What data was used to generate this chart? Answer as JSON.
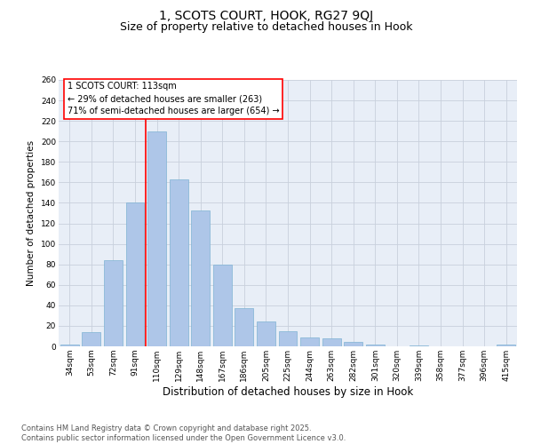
{
  "title_line1": "1, SCOTS COURT, HOOK, RG27 9QJ",
  "title_line2": "Size of property relative to detached houses in Hook",
  "xlabel": "Distribution of detached houses by size in Hook",
  "ylabel": "Number of detached properties",
  "categories": [
    "34sqm",
    "53sqm",
    "72sqm",
    "91sqm",
    "110sqm",
    "129sqm",
    "148sqm",
    "167sqm",
    "186sqm",
    "205sqm",
    "225sqm",
    "244sqm",
    "263sqm",
    "282sqm",
    "301sqm",
    "320sqm",
    "339sqm",
    "358sqm",
    "377sqm",
    "396sqm",
    "415sqm"
  ],
  "values": [
    2,
    14,
    84,
    140,
    210,
    163,
    133,
    80,
    37,
    24,
    15,
    9,
    8,
    4,
    2,
    0,
    1,
    0,
    0,
    0,
    2
  ],
  "bar_color": "#aec6e8",
  "bar_edge_color": "#7fb3d3",
  "property_bin_index": 4,
  "annotation_line1": "1 SCOTS COURT: 113sqm",
  "annotation_line2": "← 29% of detached houses are smaller (263)",
  "annotation_line3": "71% of semi-detached houses are larger (654) →",
  "annotation_box_facecolor": "white",
  "annotation_box_edgecolor": "red",
  "vline_color": "red",
  "ylim": [
    0,
    260
  ],
  "yticks": [
    0,
    20,
    40,
    60,
    80,
    100,
    120,
    140,
    160,
    180,
    200,
    220,
    240,
    260
  ],
  "grid_color": "#c8d0dc",
  "background_color": "#e8eef7",
  "footer_text": "Contains HM Land Registry data © Crown copyright and database right 2025.\nContains public sector information licensed under the Open Government Licence v3.0.",
  "title_fontsize": 10,
  "subtitle_fontsize": 9,
  "xlabel_fontsize": 8.5,
  "ylabel_fontsize": 7.5,
  "tick_fontsize": 6.5,
  "annotation_fontsize": 7,
  "footer_fontsize": 6
}
